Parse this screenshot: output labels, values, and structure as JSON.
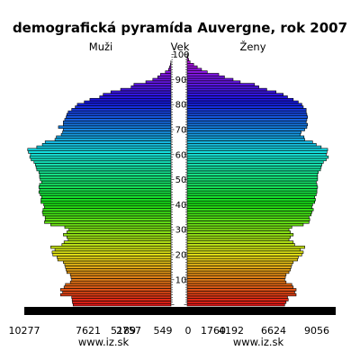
{
  "chart_data": {
    "type": "bar",
    "title": "demografická pyramída Auvergne, rok 2007",
    "left_label": "Muži",
    "center_label": "Vek",
    "right_label": "Ženy",
    "left_ticks": [
      "10277",
      "7621",
      "5189",
      "2757",
      "549"
    ],
    "right_ticks": [
      "0",
      "1760",
      "4192",
      "6624",
      "9056"
    ],
    "age_ticks": [
      "100",
      "90",
      "80",
      "70",
      "60",
      "50",
      "40",
      "30",
      "20",
      "10"
    ],
    "credit_left": "www.iz.sk",
    "credit_right": "www.iz.sk",
    "series": [
      {
        "name": "Muži",
        "values": [
          7000,
          7050,
          7070,
          7100,
          7900,
          7750,
          7900,
          7650,
          7550,
          7200,
          7100,
          7150,
          7200,
          7450,
          7500,
          7550,
          7600,
          7700,
          8100,
          8150,
          8450,
          8500,
          8300,
          8600,
          7800,
          7650,
          7350,
          7450,
          7700,
          7450,
          7300,
          7600,
          8600,
          9050,
          9000,
          9000,
          9150,
          9200,
          9150,
          9050,
          9100,
          9300,
          9300,
          9250,
          9350,
          9450,
          9400,
          9450,
          9400,
          9250,
          9350,
          9400,
          9400,
          9450,
          9600,
          9650,
          9700,
          9800,
          10000,
          10100,
          10050,
          10200,
          10250,
          9600,
          9200,
          9000,
          8300,
          8200,
          7850,
          7750,
          7700,
          8050,
          7700,
          7700,
          7600,
          7500,
          7450,
          7350,
          7100,
          6850,
          6700,
          6200,
          5800,
          5100,
          4850,
          4300,
          3600,
          2850,
          2650,
          1800,
          1300,
          950,
          750,
          400,
          180,
          100,
          40,
          10,
          0,
          0,
          0
        ]
      },
      {
        "name": "Ženy",
        "values": [
          6800,
          6900,
          7050,
          7000,
          7600,
          7500,
          7600,
          7400,
          7300,
          6900,
          6800,
          6850,
          6900,
          7100,
          7200,
          7250,
          7300,
          7400,
          7700,
          7750,
          8000,
          8100,
          7900,
          8200,
          7500,
          7400,
          7100,
          7200,
          7400,
          7200,
          7100,
          7300,
          8100,
          8500,
          8550,
          8500,
          8650,
          8700,
          8800,
          8700,
          8750,
          8900,
          8950,
          8900,
          9000,
          9050,
          9050,
          9100,
          9050,
          9000,
          9100,
          9100,
          9100,
          9150,
          9300,
          9350,
          9400,
          9500,
          9700,
          9850,
          9700,
          9750,
          9800,
          9350,
          9000,
          8750,
          8200,
          8150,
          7900,
          7950,
          8200,
          8350,
          8400,
          8300,
          8350,
          8400,
          8350,
          8300,
          8300,
          8100,
          8000,
          7750,
          7400,
          7000,
          6700,
          6200,
          5550,
          5000,
          4700,
          3700,
          3200,
          2600,
          2200,
          1400,
          1000,
          700,
          450,
          200,
          100,
          40,
          15
        ]
      }
    ],
    "colors": {
      "background": "#ffffff",
      "bar_outline": "#000000",
      "baseline": "#000000"
    }
  }
}
